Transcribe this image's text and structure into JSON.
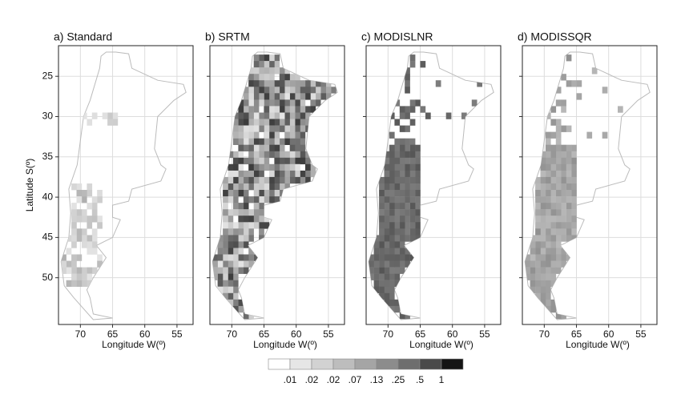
{
  "panels": [
    {
      "title": "a) Standard",
      "x_label": "Longitude W(º)"
    },
    {
      "title": "b) SRTM",
      "x_label": "Longitude W(º)"
    },
    {
      "title": "c) MODISLNR",
      "x_label": "Longitude W(º)"
    },
    {
      "title": "d) MODISSQR",
      "x_label": "Longitude W(º)"
    }
  ],
  "y_label": "Latitude S(º)",
  "xticks": [
    70,
    65,
    60,
    55
  ],
  "yticks": [
    25,
    30,
    35,
    40,
    45,
    50
  ],
  "xlim": [
    73.4,
    52.5
  ],
  "ylim": [
    21.2,
    55.8
  ],
  "legend": {
    "labels": [
      ".01",
      ".02",
      ".02",
      ".07",
      ".13",
      ".25",
      ".5",
      "1"
    ],
    "colors": [
      "#ffffff",
      "#e6e6e6",
      "#d2d2d2",
      "#bdbdbd",
      "#a5a5a5",
      "#8c8c8c",
      "#6e6e6e",
      "#4a4a4a",
      "#151515"
    ]
  }
}
